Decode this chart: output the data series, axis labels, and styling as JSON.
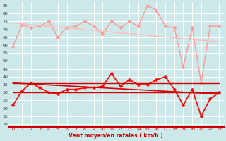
{
  "title": "",
  "xlabel": "Vent moyen/en rafales ( km/h )",
  "background_color": "#cce8e8",
  "grid_color": "#ffffff",
  "x_ticks": [
    0,
    1,
    2,
    3,
    4,
    5,
    6,
    7,
    8,
    9,
    10,
    11,
    12,
    13,
    14,
    15,
    16,
    17,
    18,
    19,
    20,
    21,
    22,
    23
  ],
  "y_ticks": [
    10,
    15,
    20,
    25,
    30,
    35,
    40,
    45,
    50,
    55,
    60,
    65,
    70,
    75,
    80,
    85
  ],
  "ylim": [
    8,
    87
  ],
  "xlim": [
    -0.5,
    23.5
  ],
  "series": [
    {
      "name": "rafales_observed",
      "color": "#ff9999",
      "linewidth": 1.0,
      "marker": "D",
      "markersize": 2.5,
      "x": [
        0,
        1,
        2,
        3,
        4,
        5,
        6,
        7,
        8,
        9,
        10,
        11,
        12,
        13,
        14,
        15,
        16,
        17,
        18,
        19,
        20,
        21,
        22,
        23
      ],
      "y": [
        59,
        73,
        71,
        72,
        75,
        65,
        71,
        72,
        75,
        72,
        67,
        75,
        71,
        75,
        72,
        85,
        82,
        72,
        71,
        46,
        71,
        36,
        72,
        72
      ]
    },
    {
      "name": "rafales_trend",
      "color": "#ffbbbb",
      "linewidth": 1.0,
      "marker": null,
      "markersize": 0,
      "x": [
        0,
        23
      ],
      "y": [
        74,
        62
      ]
    },
    {
      "name": "vent_observed",
      "color": "#ff0000",
      "linewidth": 1.2,
      "marker": "D",
      "markersize": 2.5,
      "x": [
        0,
        1,
        2,
        3,
        4,
        5,
        6,
        7,
        8,
        9,
        10,
        11,
        12,
        13,
        14,
        15,
        16,
        17,
        18,
        19,
        20,
        21,
        22,
        23
      ],
      "y": [
        22,
        31,
        36,
        33,
        30,
        29,
        32,
        32,
        33,
        33,
        34,
        42,
        34,
        38,
        35,
        35,
        38,
        40,
        32,
        22,
        32,
        15,
        26,
        30
      ]
    },
    {
      "name": "vent_trend",
      "color": "#dd0000",
      "linewidth": 1.2,
      "marker": null,
      "markersize": 0,
      "x": [
        0,
        23
      ],
      "y": [
        36,
        29
      ]
    },
    {
      "name": "vent_upper_band",
      "color": "#cc0000",
      "linewidth": 1.0,
      "marker": null,
      "markersize": 0,
      "x": [
        0,
        23
      ],
      "y": [
        36,
        36
      ]
    },
    {
      "name": "vent_lower_band",
      "color": "#cc0000",
      "linewidth": 1.0,
      "marker": null,
      "markersize": 0,
      "x": [
        0,
        23
      ],
      "y": [
        30,
        30
      ]
    }
  ]
}
